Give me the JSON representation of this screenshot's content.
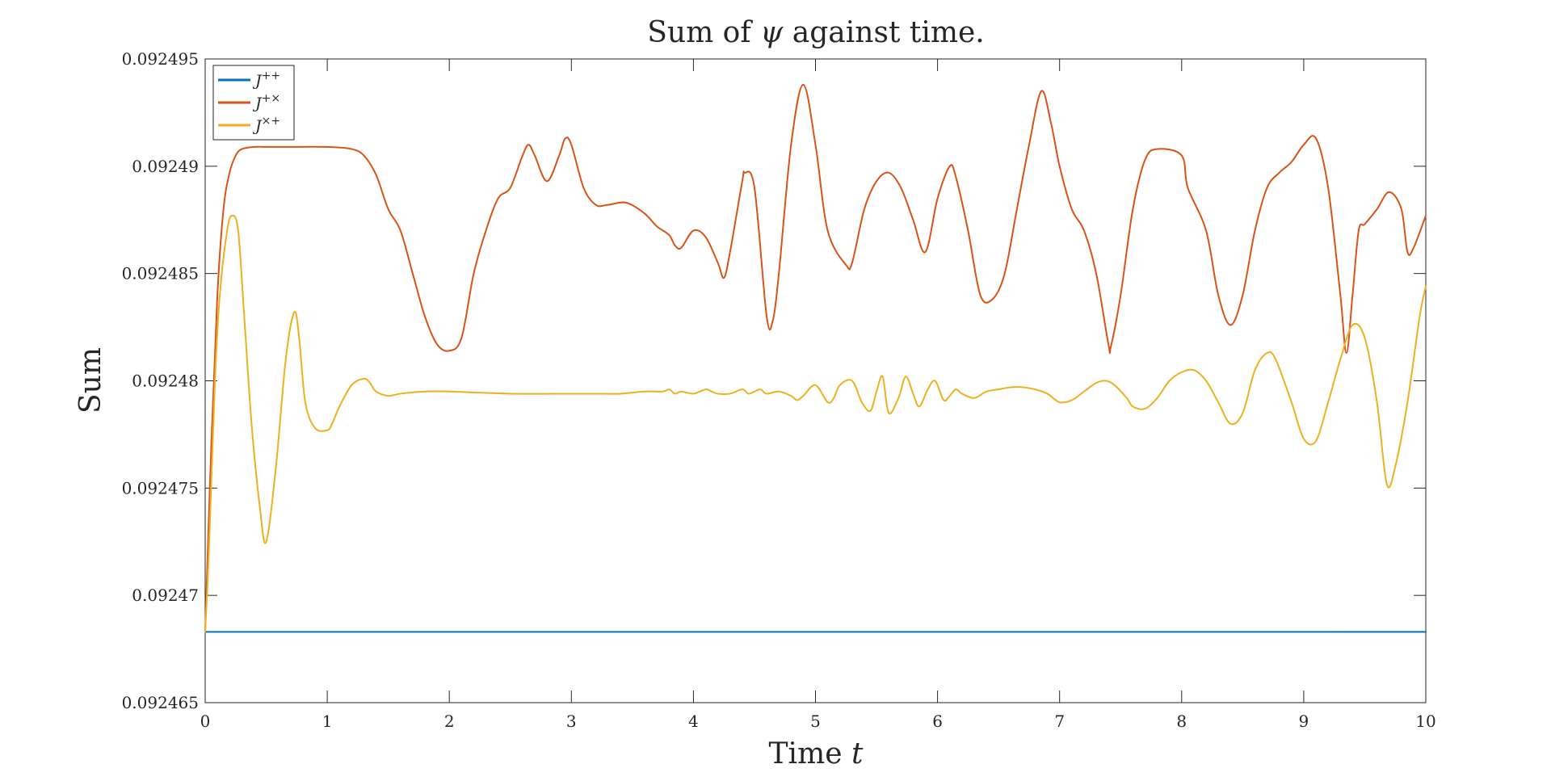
{
  "chart_data": {
    "type": "line",
    "title_prefix": "Sum of ",
    "title_symbol": "ψ",
    "title_suffix": " against time.",
    "title": "Sum of ψ against time.",
    "xlabel_prefix": "Time ",
    "xlabel_var": "t",
    "xlabel": "Time t",
    "ylabel": "Sum",
    "xlim": [
      0,
      10
    ],
    "ylim": [
      0.092465,
      0.092495
    ],
    "xticks": [
      0,
      1,
      2,
      3,
      4,
      5,
      6,
      7,
      8,
      9,
      10
    ],
    "xtick_labels": [
      "0",
      "1",
      "2",
      "3",
      "4",
      "5",
      "6",
      "7",
      "8",
      "9",
      "10"
    ],
    "yticks": [
      0.092465,
      0.09247,
      0.092475,
      0.09248,
      0.092485,
      0.09249,
      0.092495
    ],
    "ytick_labels": [
      "0.092465",
      "0.09247",
      "0.092475",
      "0.09248",
      "0.092485",
      "0.09249",
      "0.092495"
    ],
    "grid": false,
    "legend_position": "top-left",
    "series": [
      {
        "name": "J++",
        "base": "J",
        "sup": "++",
        "color": "#0072BD",
        "x": [
          0,
          10
        ],
        "y": [
          0.0924683,
          0.0924683
        ]
      },
      {
        "name": "J+×",
        "base": "J",
        "sup": "+×",
        "color": "#D95319",
        "x": [
          0,
          0.05,
          0.1,
          0.15,
          0.2,
          0.25,
          0.3,
          0.4,
          0.5,
          0.7,
          1.0,
          1.2,
          1.3,
          1.4,
          1.5,
          1.6,
          1.7,
          1.8,
          1.9,
          2.0,
          2.1,
          2.2,
          2.3,
          2.4,
          2.5,
          2.6,
          2.65,
          2.7,
          2.8,
          2.9,
          2.95,
          3.0,
          3.1,
          3.2,
          3.3,
          3.45,
          3.6,
          3.7,
          3.8,
          3.85,
          3.9,
          4.0,
          4.1,
          4.2,
          4.25,
          4.3,
          4.4,
          4.42,
          4.5,
          4.6,
          4.65,
          4.7,
          4.8,
          4.9,
          5.0,
          5.1,
          5.25,
          5.3,
          5.4,
          5.5,
          5.6,
          5.7,
          5.8,
          5.9,
          6.0,
          6.1,
          6.15,
          6.25,
          6.35,
          6.45,
          6.55,
          6.65,
          6.75,
          6.85,
          6.93,
          7.0,
          7.1,
          7.2,
          7.3,
          7.4,
          7.42,
          7.5,
          7.6,
          7.7,
          7.8,
          8.0,
          8.05,
          8.2,
          8.3,
          8.4,
          8.5,
          8.6,
          8.7,
          8.8,
          8.9,
          9.0,
          9.1,
          9.2,
          9.3,
          9.35,
          9.4,
          9.45,
          9.5,
          9.6,
          9.7,
          9.8,
          9.85,
          9.9,
          10.0
        ],
        "y": [
          0.0924683,
          0.092477,
          0.092484,
          0.092488,
          0.0924897,
          0.0924905,
          0.0924908,
          0.0924909,
          0.0924909,
          0.0924909,
          0.0924909,
          0.0924908,
          0.0924905,
          0.0924896,
          0.092488,
          0.092487,
          0.092485,
          0.092483,
          0.0924817,
          0.0924814,
          0.092482,
          0.092485,
          0.092487,
          0.0924885,
          0.092489,
          0.0924905,
          0.092491,
          0.0924905,
          0.0924893,
          0.0924905,
          0.0924913,
          0.092491,
          0.092489,
          0.0924882,
          0.0924882,
          0.0924883,
          0.0924878,
          0.0924872,
          0.0924868,
          0.0924863,
          0.0924862,
          0.092487,
          0.0924867,
          0.0924855,
          0.0924848,
          0.092486,
          0.0924893,
          0.0924897,
          0.092489,
          0.092483,
          0.0924828,
          0.092485,
          0.092491,
          0.0924938,
          0.092491,
          0.092487,
          0.0924854,
          0.0924855,
          0.092488,
          0.0924893,
          0.0924897,
          0.092489,
          0.0924875,
          0.092486,
          0.0924885,
          0.09249,
          0.0924895,
          0.092487,
          0.092484,
          0.0924838,
          0.092485,
          0.092488,
          0.092491,
          0.0924935,
          0.092492,
          0.09249,
          0.092488,
          0.092487,
          0.092485,
          0.0924817,
          0.0924816,
          0.092484,
          0.092488,
          0.0924903,
          0.0924908,
          0.0924905,
          0.092489,
          0.092487,
          0.092484,
          0.0924826,
          0.092484,
          0.092487,
          0.092489,
          0.0924897,
          0.0924902,
          0.092491,
          0.0924913,
          0.092489,
          0.092484,
          0.0924813,
          0.092484,
          0.092487,
          0.0924873,
          0.092488,
          0.0924888,
          0.092488,
          0.092486,
          0.0924862,
          0.0924877
        ]
      },
      {
        "name": "J×+",
        "base": "J",
        "sup": "×+",
        "color": "#EDB120",
        "x": [
          0,
          0.03,
          0.08,
          0.12,
          0.18,
          0.22,
          0.27,
          0.32,
          0.38,
          0.45,
          0.5,
          0.58,
          0.66,
          0.73,
          0.77,
          0.82,
          0.9,
          1.0,
          1.04,
          1.1,
          1.2,
          1.3,
          1.35,
          1.4,
          1.5,
          1.6,
          1.8,
          2.0,
          2.5,
          3.0,
          3.2,
          3.4,
          3.6,
          3.75,
          3.8,
          3.85,
          3.9,
          4.0,
          4.1,
          4.15,
          4.2,
          4.3,
          4.4,
          4.45,
          4.5,
          4.55,
          4.6,
          4.7,
          4.8,
          4.85,
          4.9,
          5.0,
          5.1,
          5.15,
          5.2,
          5.3,
          5.38,
          5.45,
          5.5,
          5.55,
          5.6,
          5.68,
          5.74,
          5.8,
          5.85,
          5.92,
          5.98,
          6.05,
          6.1,
          6.15,
          6.2,
          6.3,
          6.4,
          6.5,
          6.6,
          6.7,
          6.8,
          6.9,
          7.0,
          7.1,
          7.2,
          7.3,
          7.38,
          7.45,
          7.55,
          7.6,
          7.7,
          7.8,
          7.9,
          8.0,
          8.1,
          8.2,
          8.3,
          8.4,
          8.5,
          8.6,
          8.7,
          8.77,
          8.9,
          9.0,
          9.1,
          9.2,
          9.3,
          9.4,
          9.5,
          9.6,
          9.68,
          9.75,
          9.85,
          9.95,
          10.0
        ],
        "y": [
          0.0924683,
          0.092472,
          0.09248,
          0.092484,
          0.092487,
          0.0924877,
          0.092487,
          0.092483,
          0.092478,
          0.092474,
          0.0924725,
          0.092476,
          0.092481,
          0.0924832,
          0.092482,
          0.092479,
          0.0924778,
          0.0924777,
          0.092478,
          0.0924788,
          0.0924798,
          0.0924801,
          0.0924799,
          0.0924795,
          0.0924793,
          0.0924794,
          0.0924795,
          0.0924795,
          0.0924794,
          0.0924794,
          0.0924794,
          0.0924794,
          0.0924795,
          0.0924795,
          0.0924796,
          0.0924794,
          0.0924795,
          0.0924794,
          0.0924796,
          0.0924795,
          0.0924794,
          0.0924794,
          0.0924796,
          0.0924794,
          0.0924795,
          0.0924796,
          0.0924794,
          0.0924795,
          0.0924793,
          0.0924791,
          0.0924793,
          0.0924798,
          0.092479,
          0.0924792,
          0.0924798,
          0.09248,
          0.092479,
          0.0924786,
          0.0924795,
          0.0924802,
          0.0924785,
          0.0924792,
          0.0924802,
          0.0924794,
          0.0924788,
          0.0924796,
          0.09248,
          0.0924791,
          0.0924793,
          0.0924796,
          0.0924794,
          0.0924792,
          0.0924795,
          0.0924796,
          0.0924797,
          0.0924797,
          0.0924796,
          0.0924794,
          0.092479,
          0.0924791,
          0.0924795,
          0.0924799,
          0.09248,
          0.0924798,
          0.0924792,
          0.0924788,
          0.0924787,
          0.0924792,
          0.09248,
          0.0924804,
          0.0924805,
          0.09248,
          0.092479,
          0.092478,
          0.0924785,
          0.0924805,
          0.0924813,
          0.092481,
          0.092479,
          0.0924773,
          0.0924772,
          0.092479,
          0.092481,
          0.0924826,
          0.092482,
          0.092479,
          0.0924752,
          0.092476,
          0.092479,
          0.092483,
          0.0924844
        ]
      }
    ]
  }
}
